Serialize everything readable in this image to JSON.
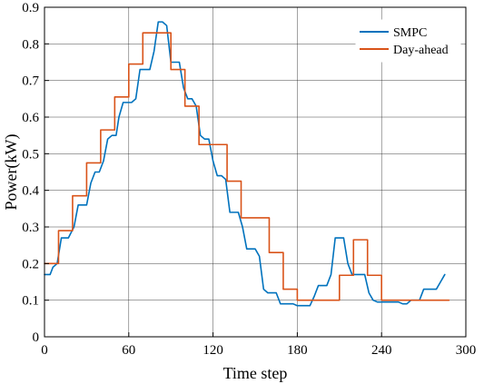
{
  "chart_data": {
    "type": "line",
    "xlabel": "Time step",
    "ylabel": "Power(kW)",
    "xlim": [
      0,
      300
    ],
    "ylim": [
      0,
      0.9
    ],
    "xticks": [
      "0",
      "60",
      "120",
      "180",
      "240",
      "300"
    ],
    "yticks": [
      "0",
      "0.1",
      "0.2",
      "0.3",
      "0.4",
      "0.5",
      "0.6",
      "0.7",
      "0.8",
      "0.9"
    ],
    "grid": true,
    "legend_position": "top-right",
    "series": [
      {
        "name": "SMPC",
        "color": "#0072BD",
        "style": "smooth",
        "x": [
          0,
          4,
          6,
          9,
          12,
          14,
          17,
          21,
          24,
          27,
          30,
          33,
          36,
          39,
          42,
          45,
          48,
          51,
          53,
          56,
          60,
          62,
          65,
          68,
          69,
          72,
          75,
          78,
          81,
          84,
          87,
          90,
          93,
          96,
          99,
          102,
          105,
          108,
          111,
          114,
          117,
          120,
          123,
          126,
          129,
          132,
          135,
          138,
          141,
          144,
          147,
          150,
          153,
          156,
          159,
          162,
          165,
          168,
          171,
          174,
          177,
          180,
          183,
          186,
          189,
          192,
          195,
          198,
          201,
          204,
          207,
          210,
          213,
          216,
          219,
          222,
          225,
          228,
          231,
          234,
          237,
          240,
          243,
          246,
          249,
          252,
          255,
          258,
          261,
          264,
          267,
          270,
          273,
          276,
          279,
          282,
          285
        ],
        "y": [
          0.17,
          0.17,
          0.19,
          0.2,
          0.27,
          0.27,
          0.27,
          0.3,
          0.36,
          0.36,
          0.36,
          0.42,
          0.45,
          0.45,
          0.48,
          0.54,
          0.55,
          0.55,
          0.6,
          0.64,
          0.64,
          0.64,
          0.65,
          0.73,
          0.73,
          0.73,
          0.73,
          0.78,
          0.86,
          0.86,
          0.85,
          0.75,
          0.75,
          0.75,
          0.68,
          0.65,
          0.65,
          0.63,
          0.55,
          0.54,
          0.54,
          0.48,
          0.44,
          0.44,
          0.43,
          0.34,
          0.34,
          0.34,
          0.3,
          0.24,
          0.24,
          0.24,
          0.22,
          0.13,
          0.12,
          0.12,
          0.12,
          0.09,
          0.09,
          0.09,
          0.09,
          0.085,
          0.085,
          0.085,
          0.085,
          0.11,
          0.14,
          0.14,
          0.14,
          0.17,
          0.27,
          0.27,
          0.27,
          0.2,
          0.17,
          0.17,
          0.17,
          0.17,
          0.12,
          0.1,
          0.095,
          0.095,
          0.095,
          0.095,
          0.095,
          0.095,
          0.09,
          0.09,
          0.1,
          0.1,
          0.1,
          0.13,
          0.13,
          0.13,
          0.13,
          0.15,
          0.17
        ]
      },
      {
        "name": "Day-ahead",
        "color": "#D95319",
        "style": "step",
        "x": [
          0,
          10,
          20,
          30,
          40,
          50,
          60,
          70,
          80,
          90,
          100,
          110,
          120,
          130,
          140,
          150,
          160,
          170,
          180,
          190,
          200,
          210,
          220,
          230,
          240,
          250,
          260,
          270,
          280,
          288
        ],
        "y": [
          0.2,
          0.29,
          0.385,
          0.475,
          0.565,
          0.655,
          0.745,
          0.83,
          0.83,
          0.73,
          0.63,
          0.525,
          0.525,
          0.425,
          0.325,
          0.325,
          0.23,
          0.13,
          0.1,
          0.1,
          0.1,
          0.168,
          0.265,
          0.168,
          0.1,
          0.1,
          0.1,
          0.1,
          0.1,
          0.1
        ]
      }
    ]
  }
}
